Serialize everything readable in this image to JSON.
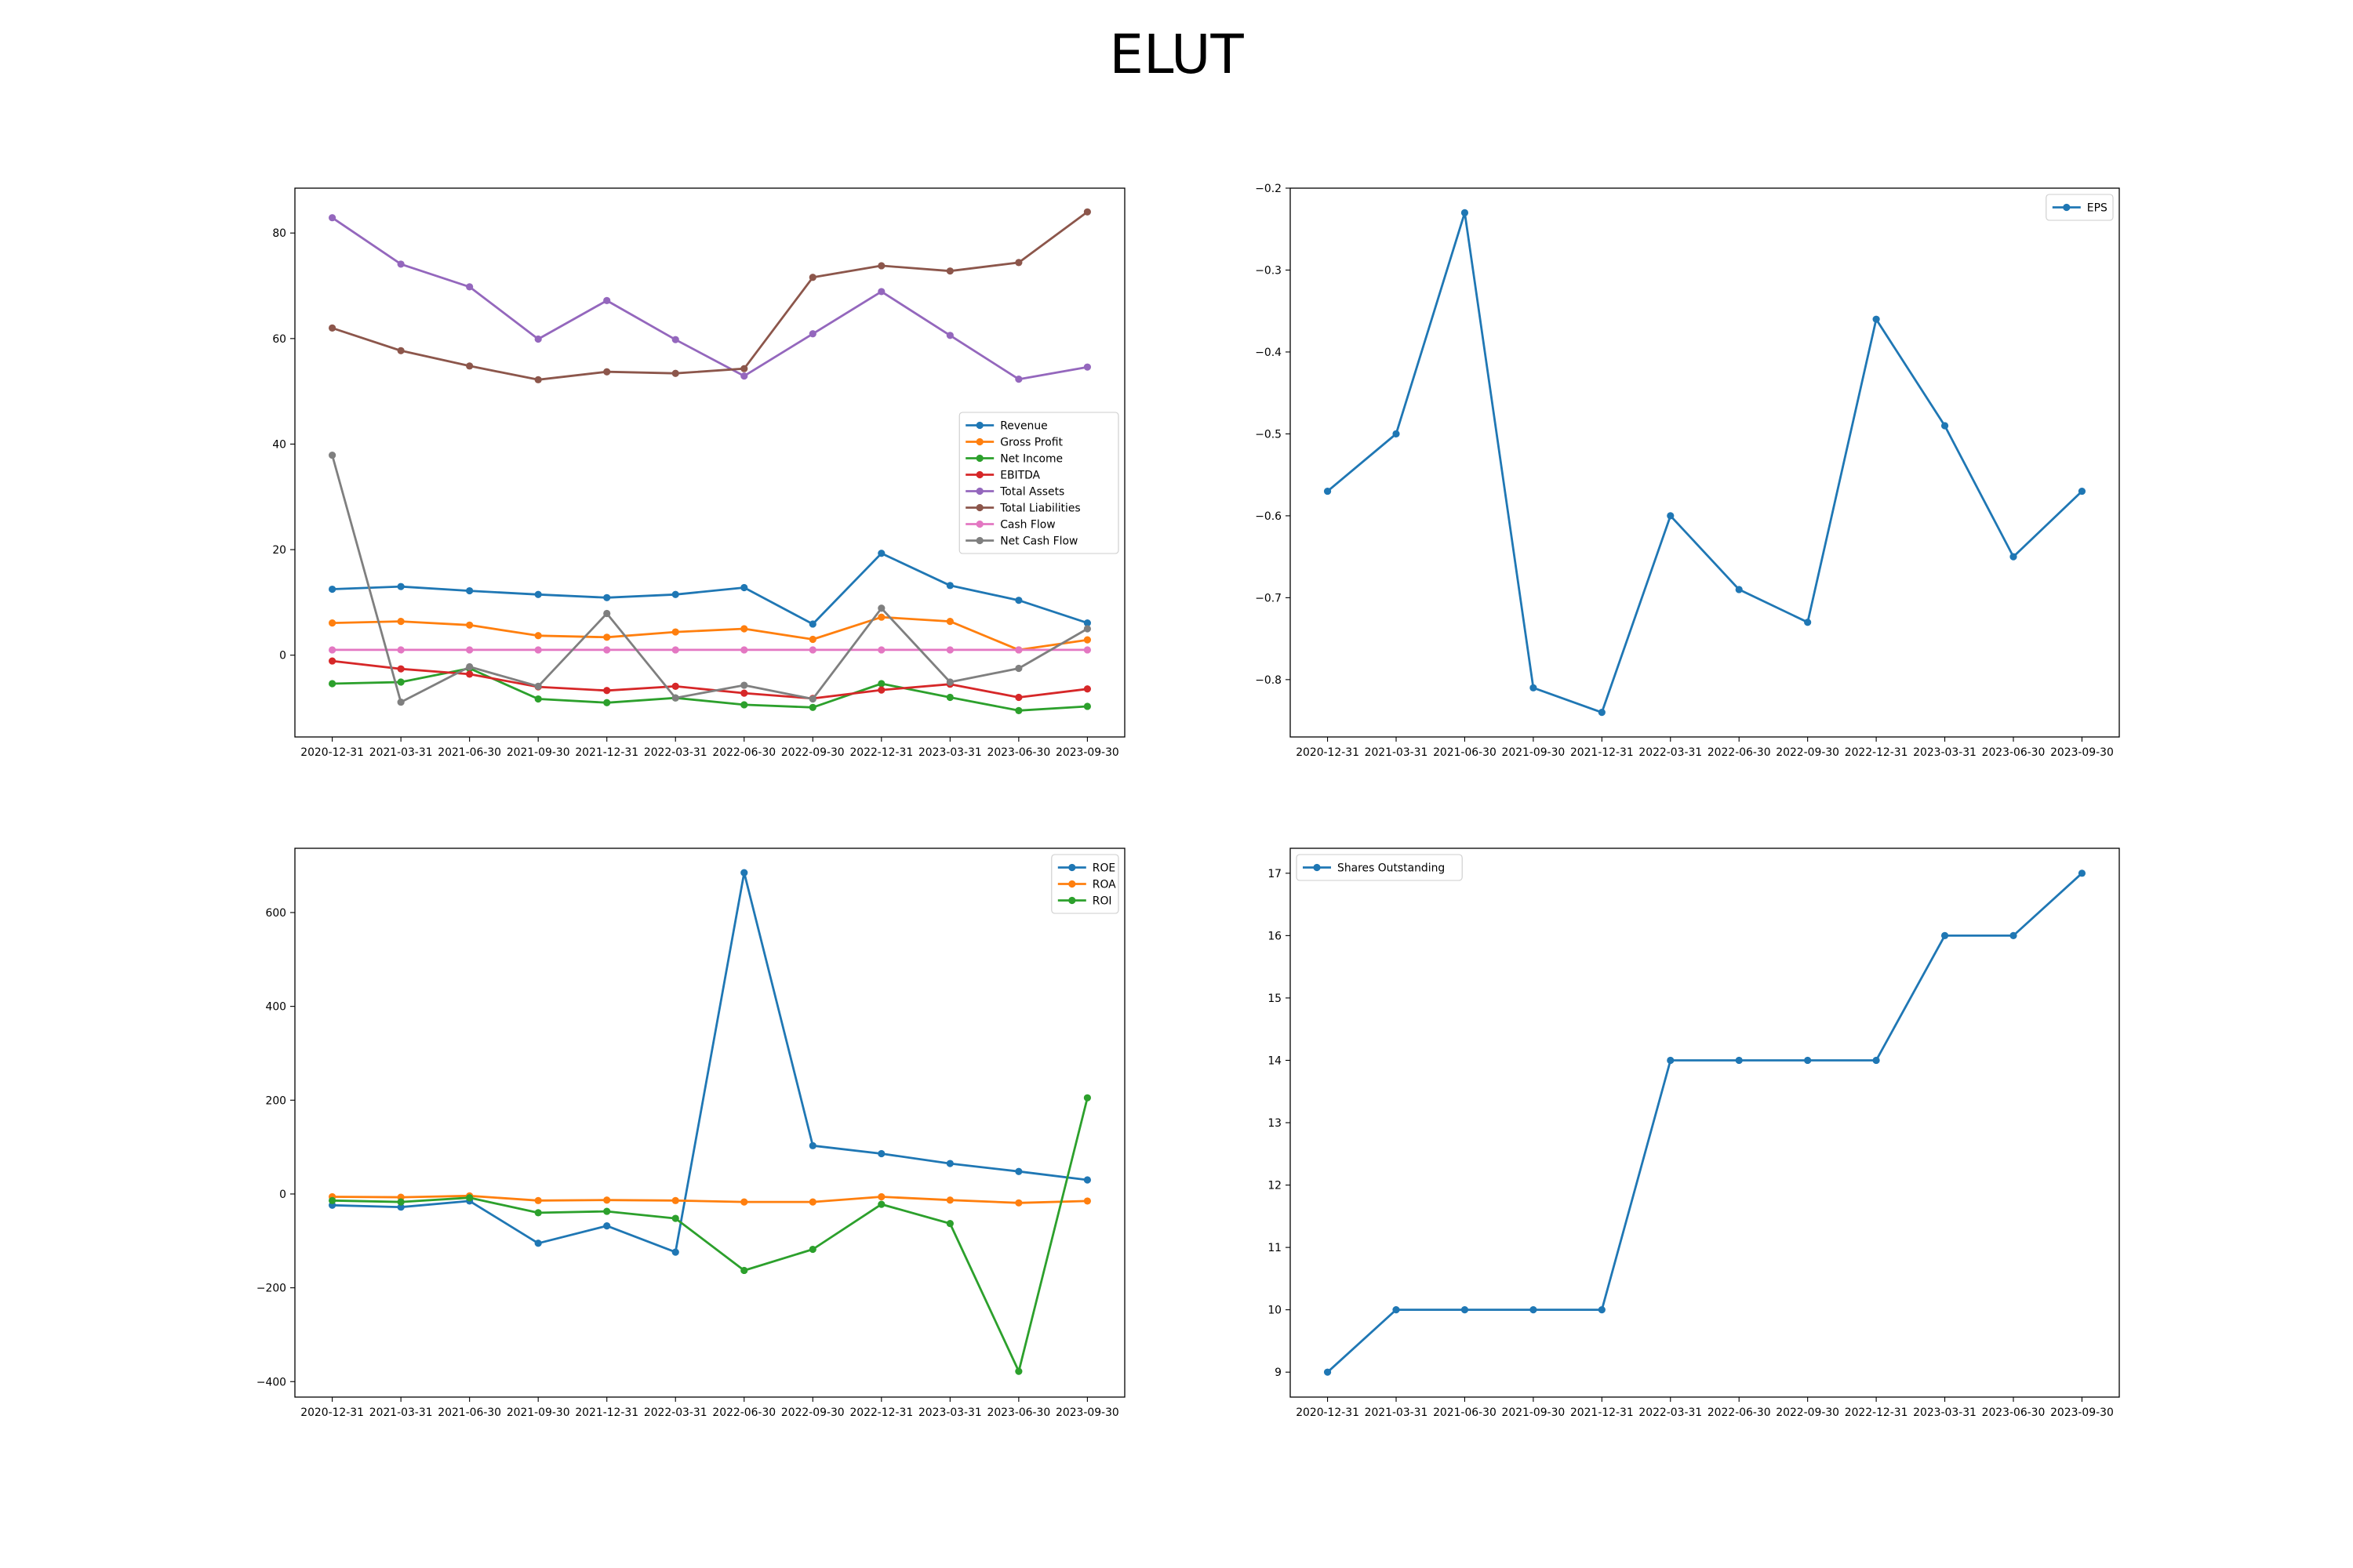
{
  "figure": {
    "title": "ELUT"
  },
  "chart_data": [
    {
      "type": "line",
      "categories": [
        "2020-12-31",
        "2021-03-31",
        "2021-06-30",
        "2021-09-30",
        "2021-12-31",
        "2022-03-31",
        "2022-06-30",
        "2022-09-30",
        "2022-12-31",
        "2023-03-31",
        "2023-06-30",
        "2023-09-30"
      ],
      "ylim": [
        -15.5,
        88.5
      ],
      "yticks": [
        0,
        20,
        40,
        60,
        80
      ],
      "legend_position": "center-right",
      "series": [
        {
          "name": "Revenue",
          "color": "#1f77b4",
          "values": [
            12.5,
            13.0,
            12.2,
            11.5,
            10.9,
            11.5,
            12.8,
            5.9,
            19.3,
            13.2,
            10.4,
            6.1
          ]
        },
        {
          "name": "Gross Profit",
          "color": "#ff7f0e",
          "values": [
            6.1,
            6.4,
            5.7,
            3.7,
            3.4,
            4.4,
            5.0,
            3.0,
            7.2,
            6.4,
            1.0,
            2.9
          ]
        },
        {
          "name": "Net Income",
          "color": "#2ca02c",
          "values": [
            -5.4,
            -5.1,
            -2.5,
            -8.3,
            -9.0,
            -8.1,
            -9.4,
            -9.9,
            -5.4,
            -8.0,
            -10.5,
            -9.7
          ]
        },
        {
          "name": "EBITDA",
          "color": "#d62728",
          "values": [
            -1.1,
            -2.6,
            -3.6,
            -6.0,
            -6.7,
            -5.9,
            -7.2,
            -8.2,
            -6.6,
            -5.5,
            -8.0,
            -6.4
          ]
        },
        {
          "name": "Total Assets",
          "color": "#9467bd",
          "values": [
            82.9,
            74.1,
            69.8,
            59.9,
            67.2,
            59.8,
            52.9,
            60.9,
            68.9,
            60.6,
            52.3,
            54.6
          ]
        },
        {
          "name": "Total Liabilities",
          "color": "#8c564b",
          "values": [
            62.0,
            57.7,
            54.8,
            52.2,
            53.7,
            53.4,
            54.3,
            71.6,
            73.8,
            72.8,
            74.4,
            84.0
          ]
        },
        {
          "name": "Cash Flow",
          "color": "#e377c2",
          "values": [
            1.0,
            1.0,
            1.0,
            1.0,
            1.0,
            1.0,
            1.0,
            1.0,
            1.0,
            1.0,
            1.0,
            1.0
          ]
        },
        {
          "name": "Net Cash Flow",
          "color": "#7f7f7f",
          "values": [
            37.9,
            -8.9,
            -2.2,
            -5.9,
            7.9,
            -8.1,
            -5.7,
            -8.3,
            8.9,
            -5.1,
            -2.5,
            5.0
          ]
        }
      ]
    },
    {
      "type": "line",
      "categories": [
        "2020-12-31",
        "2021-03-31",
        "2021-06-30",
        "2021-09-30",
        "2021-12-31",
        "2022-03-31",
        "2022-06-30",
        "2022-09-30",
        "2022-12-31",
        "2023-03-31",
        "2023-06-30",
        "2023-09-30"
      ],
      "ylim": [
        -0.87,
        -0.2
      ],
      "yticks": [
        -0.8,
        -0.7,
        -0.6,
        -0.5,
        -0.4,
        -0.3,
        -0.2
      ],
      "legend_position": "top-right",
      "series": [
        {
          "name": "EPS",
          "color": "#1f77b4",
          "values": [
            -0.57,
            -0.5,
            -0.23,
            -0.81,
            -0.84,
            -0.6,
            -0.69,
            -0.73,
            -0.36,
            -0.49,
            -0.65,
            -0.57
          ]
        }
      ]
    },
    {
      "type": "line",
      "categories": [
        "2020-12-31",
        "2021-03-31",
        "2021-06-30",
        "2021-09-30",
        "2021-12-31",
        "2022-03-31",
        "2022-06-30",
        "2022-09-30",
        "2022-12-31",
        "2023-03-31",
        "2023-06-30",
        "2023-09-30"
      ],
      "ylim": [
        -433,
        737
      ],
      "yticks": [
        -400,
        -200,
        0,
        200,
        400,
        600
      ],
      "legend_position": "top-right",
      "series": [
        {
          "name": "ROE",
          "color": "#1f77b4",
          "values": [
            -24,
            -28,
            -15,
            -105,
            -68,
            -124,
            685,
            103,
            86,
            65,
            48,
            30
          ]
        },
        {
          "name": "ROA",
          "color": "#ff7f0e",
          "values": [
            -6,
            -7,
            -4,
            -14,
            -13,
            -14,
            -17,
            -17,
            -6,
            -13,
            -19,
            -15
          ]
        },
        {
          "name": "ROI",
          "color": "#2ca02c",
          "values": [
            -14,
            -17,
            -8,
            -40,
            -37,
            -52,
            -163,
            -118,
            -22,
            -63,
            -378,
            205
          ]
        }
      ]
    },
    {
      "type": "line",
      "categories": [
        "2020-12-31",
        "2021-03-31",
        "2021-06-30",
        "2021-09-30",
        "2021-12-31",
        "2022-03-31",
        "2022-06-30",
        "2022-09-30",
        "2022-12-31",
        "2023-03-31",
        "2023-06-30",
        "2023-09-30"
      ],
      "ylim": [
        8.6,
        17.4
      ],
      "yticks": [
        9,
        10,
        11,
        12,
        13,
        14,
        15,
        16,
        17
      ],
      "legend_position": "top-left",
      "series": [
        {
          "name": "Shares Outstanding",
          "color": "#1f77b4",
          "values": [
            9,
            10,
            10,
            10,
            10,
            14,
            14,
            14,
            14,
            16,
            16,
            17
          ]
        }
      ]
    }
  ]
}
